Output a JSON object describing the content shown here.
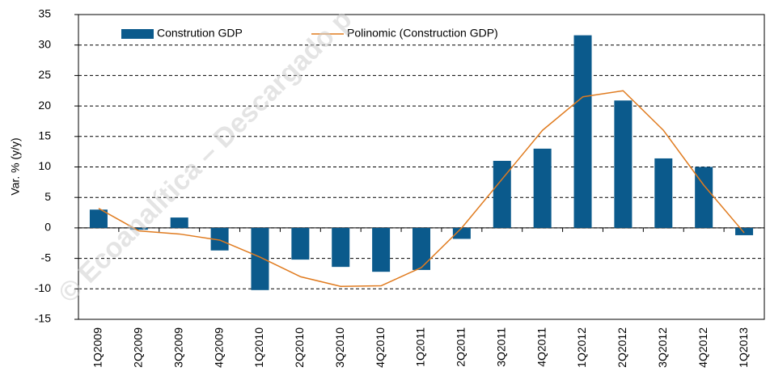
{
  "chart_data": {
    "type": "bar",
    "y_label": "Var. % (y/y)",
    "watermark": "© Ecoanalítica – Descargado p",
    "categories": [
      "1Q2009",
      "2Q2009",
      "3Q2009",
      "4Q2009",
      "1Q2010",
      "2Q2010",
      "3Q2010",
      "4Q2010",
      "1Q2011",
      "2Q2011",
      "3Q2011",
      "4Q2011",
      "1Q2012",
      "2Q2012",
      "3Q2012",
      "4Q2012",
      "1Q2013"
    ],
    "series": [
      {
        "name": "Constrution GDP",
        "type": "bar",
        "color": "#0b5a8c",
        "values": [
          3,
          -0.3,
          1.7,
          -3.7,
          -10.2,
          -5.2,
          -6.4,
          -7.2,
          -6.9,
          -1.8,
          11,
          13,
          31.6,
          20.9,
          11.4,
          10,
          -1.2
        ]
      },
      {
        "name": "Polinomic (Construction GDP)",
        "type": "line",
        "color": "#e07b1f",
        "values": [
          3.2,
          -0.5,
          -1.0,
          -2.0,
          -4.8,
          -8.0,
          -9.6,
          -9.5,
          -6.5,
          0,
          8,
          16,
          21.5,
          22.5,
          16,
          7,
          -0.8
        ]
      }
    ],
    "ylim": [
      -15,
      35
    ],
    "yticks": [
      -15,
      -10,
      -5,
      0,
      5,
      10,
      15,
      20,
      25,
      30,
      35
    ],
    "grid": true
  }
}
